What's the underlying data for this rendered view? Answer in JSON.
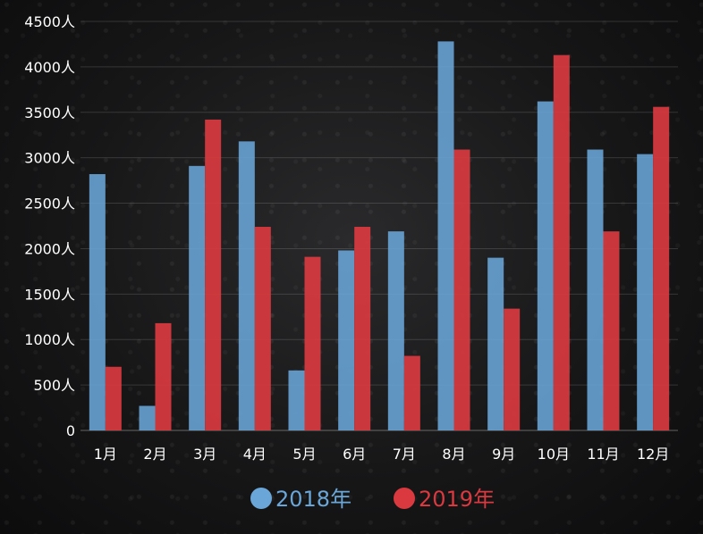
{
  "chart_data": {
    "type": "bar",
    "categories": [
      "1月",
      "2月",
      "3月",
      "4月",
      "5月",
      "6月",
      "7月",
      "8月",
      "9月",
      "10月",
      "11月",
      "12月"
    ],
    "series": [
      {
        "name": "2018年",
        "color": "#6aa6d8",
        "values": [
          2820,
          270,
          2910,
          3180,
          660,
          1980,
          2190,
          4280,
          1900,
          3620,
          3090,
          3040
        ]
      },
      {
        "name": "2019年",
        "color": "#d9393f",
        "values": [
          700,
          1180,
          3420,
          2240,
          1910,
          2240,
          820,
          3090,
          1340,
          4130,
          2190,
          3560
        ]
      }
    ],
    "ylim": [
      0,
      4500
    ],
    "y_ticks": [
      0,
      500,
      1000,
      1500,
      2000,
      2500,
      3000,
      3500,
      4000,
      4500
    ],
    "y_tick_labels": [
      "0",
      "500人",
      "1000人",
      "1500人",
      "2000人",
      "2500人",
      "3000人",
      "3500人",
      "4000人",
      "4500人"
    ],
    "grid": true,
    "legend_position": "bottom-center"
  }
}
